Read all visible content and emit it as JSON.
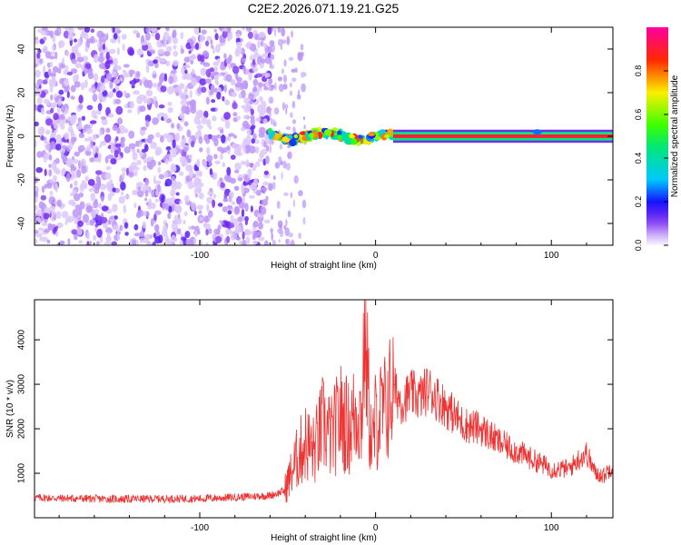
{
  "title": "C2E2.2026.071.19.21.G25",
  "chart_data": [
    {
      "type": "heatmap",
      "xlabel": "Height of straight line (km)",
      "ylabel": "Frequency (Hz)",
      "xlim": [
        -194,
        135
      ],
      "ylim": [
        -50,
        50
      ],
      "x_ticks": [
        -100,
        0,
        100
      ],
      "y_ticks": [
        -40,
        -20,
        0,
        20,
        40
      ],
      "colorbar": {
        "label": "Normalized spectral amplitude",
        "range": [
          0,
          1
        ],
        "ticks": [
          "0.0",
          "0.2",
          "0.4",
          "0.6",
          "0.8"
        ]
      },
      "regions": [
        {
          "name": "noise",
          "x_range": [
            -194,
            -60
          ],
          "y_range": [
            -50,
            50
          ],
          "level": 0.1
        },
        {
          "name": "transition",
          "x_range": [
            -60,
            -40
          ],
          "y_range": [
            -50,
            50
          ],
          "level": 0.05
        },
        {
          "name": "tone-wobble",
          "x_range": [
            -60,
            10
          ],
          "center_hz": [
            -3,
            3
          ],
          "level": 0.6
        },
        {
          "name": "tone",
          "x_range": [
            10,
            135
          ],
          "center_hz": 0,
          "level": 1.0
        }
      ]
    },
    {
      "type": "line",
      "xlabel": "Height of straight line (km)",
      "ylabel": "SNR (10 * v/v)",
      "xlim": [
        -194,
        135
      ],
      "ylim": [
        0,
        4900
      ],
      "x_ticks": [
        -100,
        0,
        100
      ],
      "y_ticks": [
        1000,
        2000,
        3000,
        4000
      ],
      "color": "#ee3333",
      "series": [
        {
          "x": [
            -194,
            -150,
            -100,
            -75,
            -60,
            -52,
            -45,
            -40,
            -35,
            -30,
            -25,
            -20,
            -15,
            -10,
            -8,
            -6,
            -4,
            -2,
            0,
            5,
            10,
            15,
            20,
            25,
            30,
            35,
            40,
            45,
            50,
            60,
            70,
            80,
            90,
            100,
            110,
            115,
            120,
            125,
            130,
            135
          ],
          "values": [
            450,
            420,
            430,
            470,
            500,
            600,
            1300,
            1700,
            1500,
            2100,
            1800,
            2300,
            2000,
            2500,
            2200,
            4700,
            2600,
            1500,
            2200,
            2400,
            2900,
            2600,
            2800,
            2700,
            2900,
            2700,
            2500,
            2300,
            2100,
            2000,
            1700,
            1500,
            1300,
            1100,
            1100,
            1300,
            1450,
            1000,
            950,
            1200
          ]
        }
      ]
    }
  ]
}
